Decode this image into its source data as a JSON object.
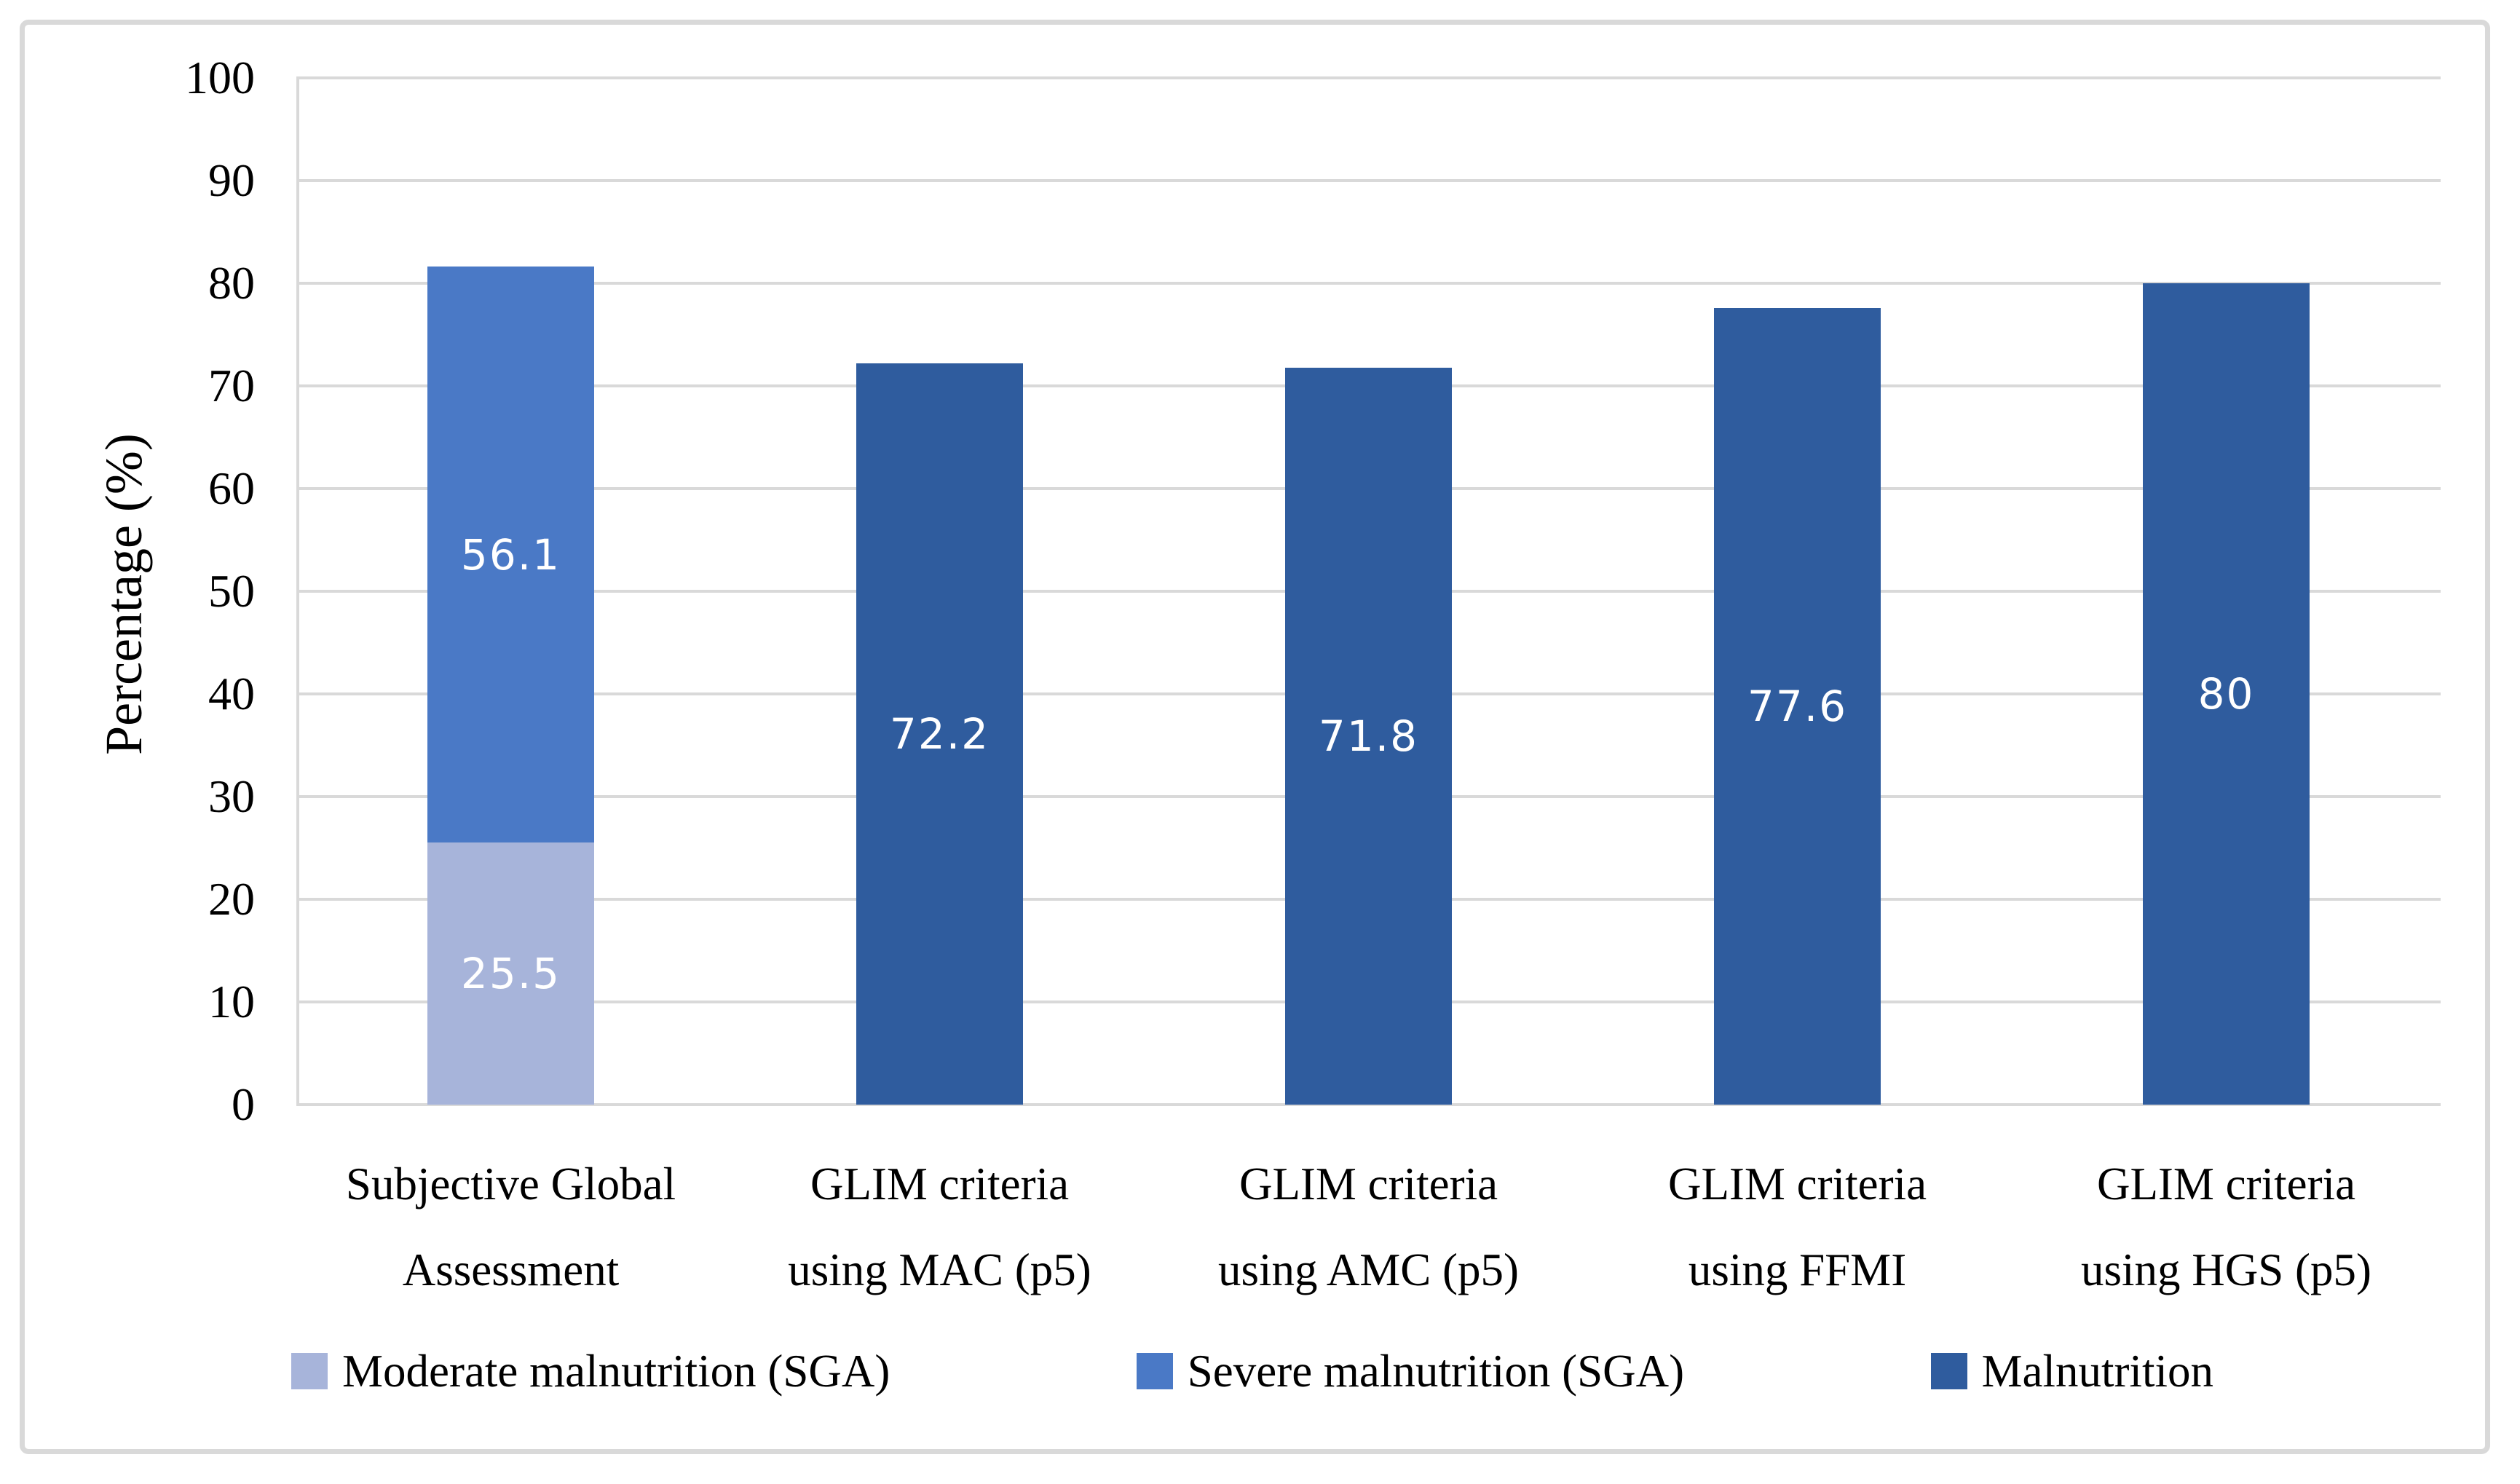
{
  "page": {
    "background": "#ffffff",
    "frame_border_color": "#d9d9d9"
  },
  "chart_data": {
    "type": "bar",
    "stacked": true,
    "title": "",
    "ylabel": "Percentage (%)",
    "xlabel": "",
    "ylim": [
      0,
      100
    ],
    "ytick_interval": 10,
    "ytick_labels": [
      "0",
      "10",
      "20",
      "30",
      "40",
      "50",
      "60",
      "70",
      "80",
      "90",
      "100"
    ],
    "grid": true,
    "gridline_color": "#d9d9d9",
    "axis_line_color": "#d9d9d9",
    "data_label_color": "#ffffff",
    "legend_position": "bottom",
    "series": [
      {
        "name": "Moderate malnutrition (SGA)",
        "color": "#a7b4da"
      },
      {
        "name": "Severe malnutrition (SGA)",
        "color": "#4a79c6"
      },
      {
        "name": "Malnutrition",
        "color": "#2f5c9e"
      }
    ],
    "categories": [
      {
        "label_lines": [
          "Subjective Global",
          "Assessment"
        ],
        "segments": [
          {
            "series": "Moderate malnutrition (SGA)",
            "value": 25.5,
            "label": "25.5"
          },
          {
            "series": "Severe malnutrition (SGA)",
            "value": 56.1,
            "label": "56.1"
          }
        ]
      },
      {
        "label_lines": [
          "GLIM criteria",
          "using MAC (p5)"
        ],
        "segments": [
          {
            "series": "Malnutrition",
            "value": 72.2,
            "label": "72.2"
          }
        ]
      },
      {
        "label_lines": [
          "GLIM criteria",
          "using AMC (p5)"
        ],
        "segments": [
          {
            "series": "Malnutrition",
            "value": 71.8,
            "label": "71.8"
          }
        ]
      },
      {
        "label_lines": [
          "GLIM criteria",
          "using FFMI"
        ],
        "segments": [
          {
            "series": "Malnutrition",
            "value": 77.6,
            "label": "77.6"
          }
        ]
      },
      {
        "label_lines": [
          "GLIM criteria",
          "using HGS (p5)"
        ],
        "segments": [
          {
            "series": "Malnutrition",
            "value": 80,
            "label": "80"
          }
        ]
      }
    ]
  }
}
